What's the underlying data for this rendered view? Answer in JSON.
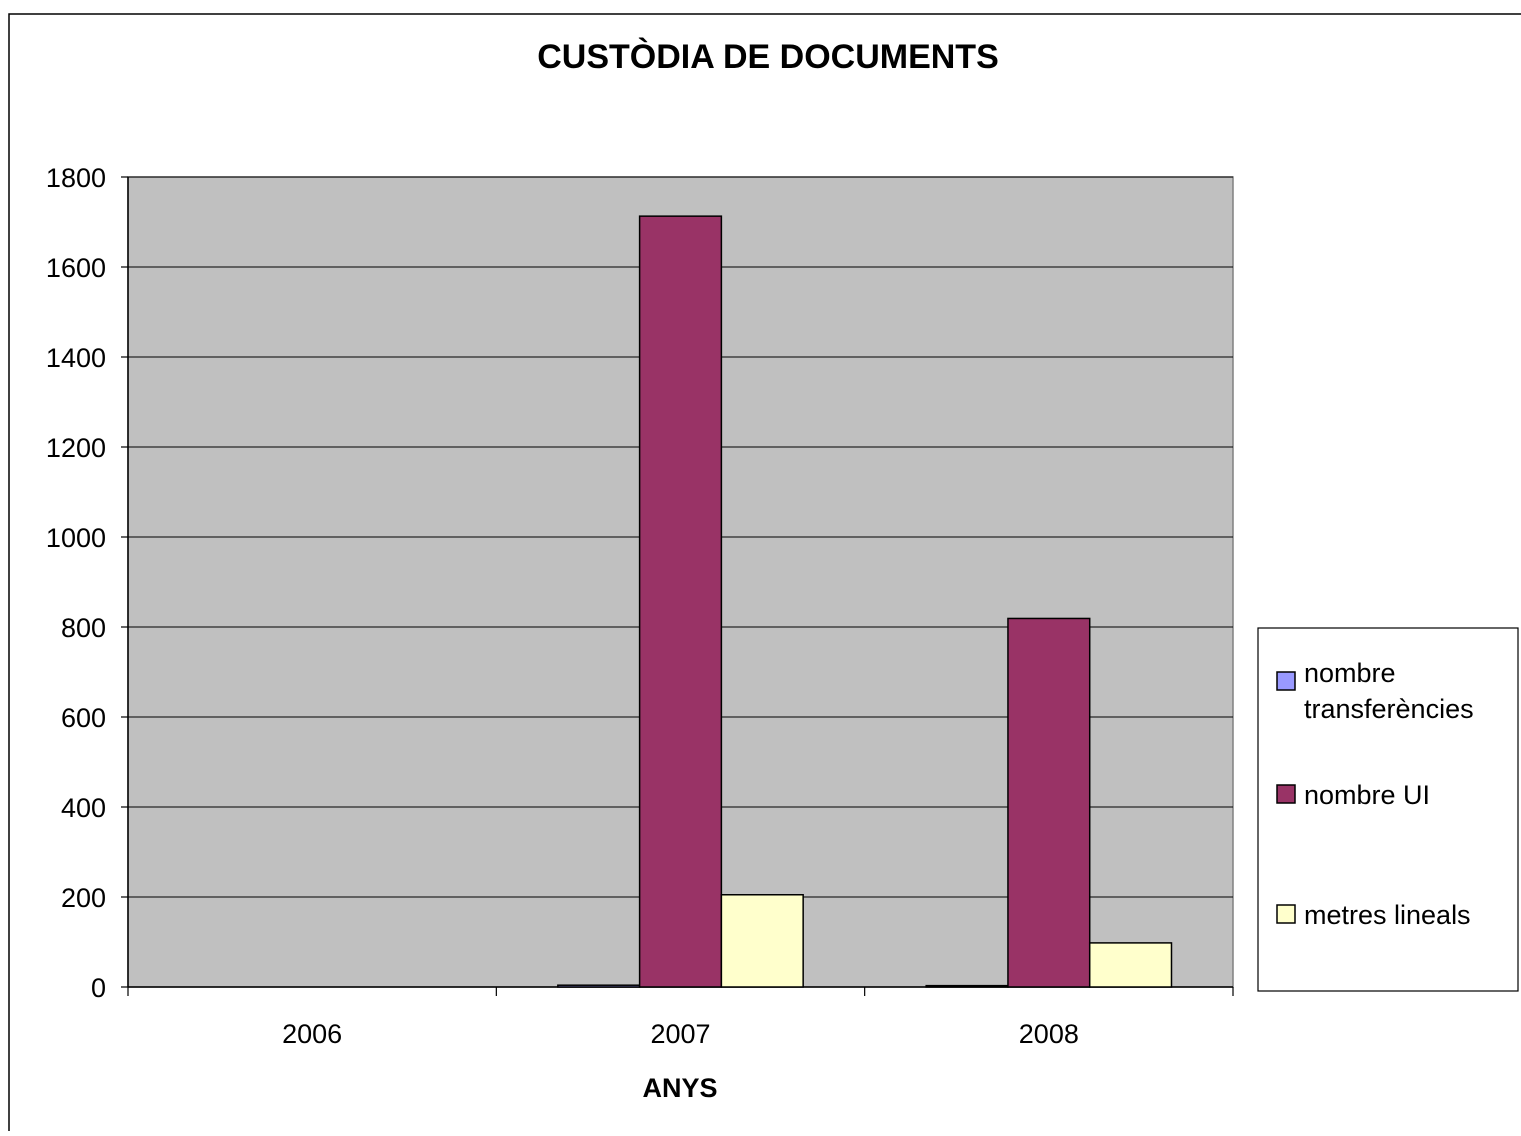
{
  "chart_data": {
    "type": "bar",
    "title": "CUSTÒDIA DE DOCUMENTS",
    "xlabel": "ANYS",
    "ylabel": "",
    "categories": [
      "2006",
      "2007",
      "2008"
    ],
    "series": [
      {
        "name": "nombre transferències",
        "values": [
          0,
          4,
          3
        ],
        "color": "#9999ff"
      },
      {
        "name": "nombre UI",
        "values": [
          0,
          1713,
          819
        ],
        "color": "#993366"
      },
      {
        "name": "metres lineals",
        "values": [
          0,
          205,
          98
        ],
        "color": "#ffffcc"
      }
    ],
    "ylim": [
      0,
      1800
    ],
    "yticks": [
      0,
      200,
      400,
      600,
      800,
      1000,
      1200,
      1400,
      1600,
      1800
    ],
    "grid": true,
    "plot_background": "#c0c0c0",
    "legend": "right"
  }
}
